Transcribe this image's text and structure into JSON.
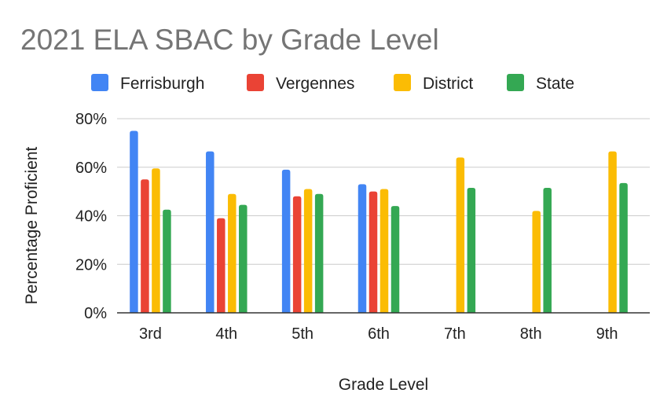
{
  "chart_data": {
    "type": "bar",
    "title": "2021 ELA SBAC by Grade Level",
    "xlabel": "Grade Level",
    "ylabel": "Percentage Proficient",
    "categories": [
      "3rd",
      "4th",
      "5th",
      "6th",
      "7th",
      "8th",
      "9th"
    ],
    "ylim": [
      0,
      80
    ],
    "yticks": [
      0,
      20,
      40,
      60,
      80
    ],
    "ytick_labels": [
      "0%",
      "20%",
      "40%",
      "60%",
      "80%"
    ],
    "grid": true,
    "legend_position": "top",
    "series": [
      {
        "name": "Ferrisburgh",
        "color": "#4285F4",
        "values": [
          75,
          66.5,
          59,
          53,
          null,
          null,
          null
        ]
      },
      {
        "name": "Vergennes",
        "color": "#EA4335",
        "values": [
          55,
          39,
          48,
          50,
          null,
          null,
          null
        ]
      },
      {
        "name": "District",
        "color": "#FBBC04",
        "values": [
          59.5,
          49,
          51,
          51,
          64,
          42,
          66.5
        ]
      },
      {
        "name": "State",
        "color": "#34A853",
        "values": [
          42.5,
          44.5,
          49,
          44,
          51.5,
          51.5,
          53.5
        ]
      }
    ]
  }
}
